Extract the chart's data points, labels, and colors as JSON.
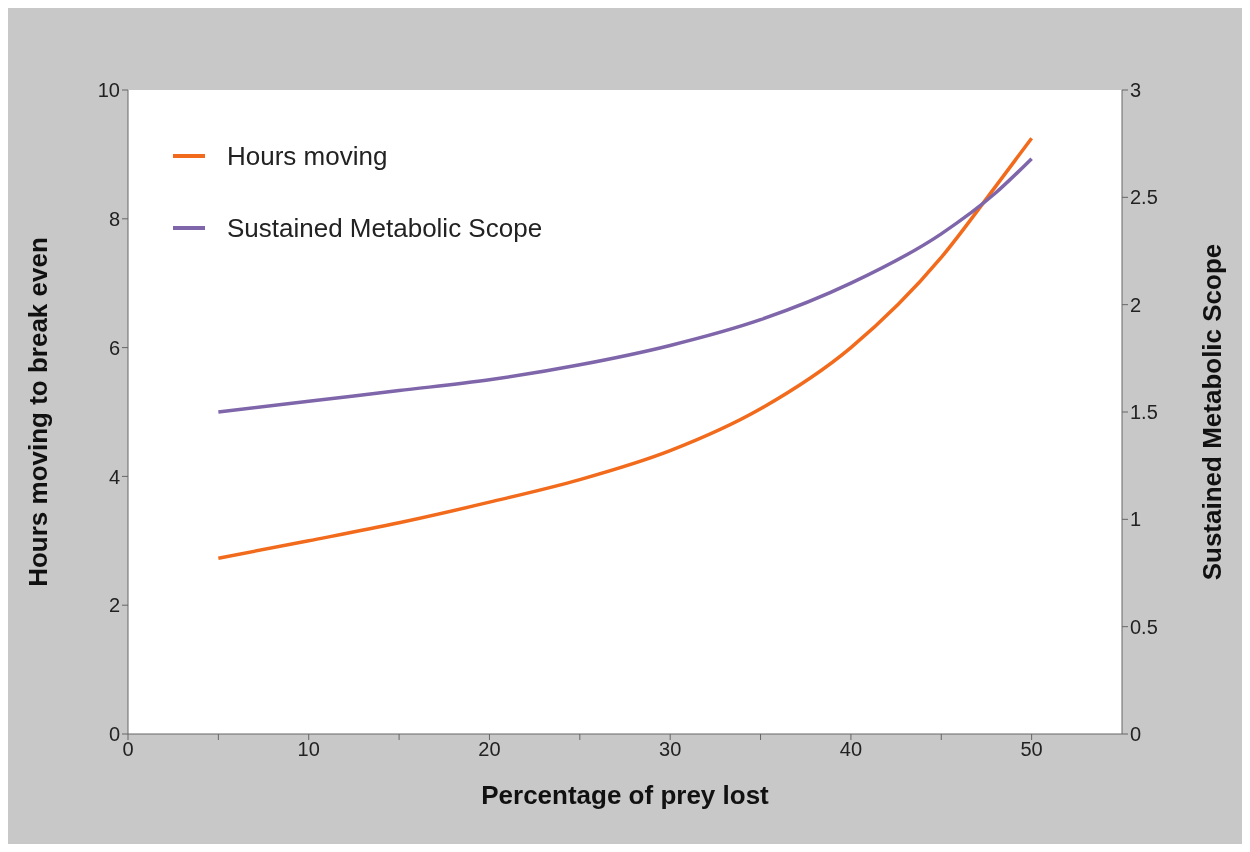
{
  "chart_data": {
    "type": "line",
    "xlabel": "Percentage of prey lost",
    "ylabel": "Hours moving to break even",
    "y2label": "Sustained Metabolic Scope",
    "series": [
      {
        "name": "Hours moving",
        "color": "#f26a1b",
        "x": [
          5,
          10,
          15,
          20,
          25,
          30,
          35,
          40,
          45,
          48,
          50
        ],
        "values": [
          2.73,
          3.0,
          3.28,
          3.6,
          3.95,
          4.4,
          5.05,
          6.0,
          7.4,
          8.5,
          9.25
        ]
      },
      {
        "name": "Sustained Metabolic Scope",
        "color": "#7f66aa",
        "axis": "y2",
        "x": [
          5,
          10,
          15,
          20,
          25,
          30,
          35,
          40,
          45,
          48,
          50
        ],
        "values": [
          1.5,
          1.55,
          1.6,
          1.65,
          1.72,
          1.81,
          1.93,
          2.1,
          2.33,
          2.52,
          2.68
        ]
      }
    ],
    "xlim": [
      0,
      55
    ],
    "xticks": [
      0,
      {
        "value": 5,
        "label": null
      },
      10,
      {
        "value": 15,
        "label": null
      },
      20,
      {
        "value": 25,
        "label": null
      },
      30,
      {
        "value": 35,
        "label": null
      },
      40,
      {
        "value": 45,
        "label": null
      },
      50
    ],
    "ylim": [
      0,
      10
    ],
    "yticks": [
      0,
      2,
      4,
      6,
      8,
      10
    ],
    "y2lim": [
      0,
      3
    ],
    "y2ticks": [
      0,
      0.5,
      1,
      1.5,
      2,
      2.5,
      3
    ],
    "legend": "top left",
    "grid": false,
    "marker": "none",
    "line_style": "solid"
  }
}
